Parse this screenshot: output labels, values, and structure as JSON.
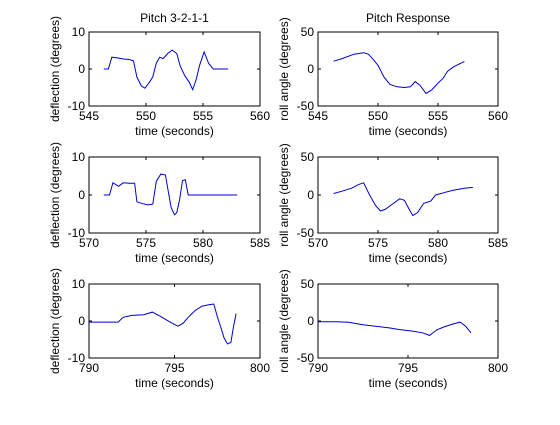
{
  "colors": {
    "line": "#0000cc",
    "axes": "#000000",
    "background": "#ffffff"
  },
  "chart_data": [
    {
      "type": "line",
      "title": "Pitch 3-2-1-1",
      "xlabel": "time (seconds)",
      "ylabel": "deflection (degrees)",
      "xlim": [
        545,
        560
      ],
      "ylim": [
        -10,
        10
      ],
      "xticks": [
        545,
        550,
        555,
        560
      ],
      "yticks": [
        -10,
        0,
        10
      ],
      "xtick_labels": [
        "545",
        "550",
        "555",
        "560"
      ],
      "ytick_labels": [
        "-10",
        "0",
        "10"
      ],
      "grid": false,
      "series": [
        {
          "values": [
            [
              546.3,
              0
            ],
            [
              546.7,
              0
            ],
            [
              547.0,
              3.2
            ],
            [
              547.5,
              3.0
            ],
            [
              548.0,
              2.7
            ],
            [
              548.5,
              2.6
            ],
            [
              548.9,
              2.2
            ],
            [
              549.2,
              -2.2
            ],
            [
              549.6,
              -4.6
            ],
            [
              549.9,
              -5.2
            ],
            [
              550.3,
              -3.6
            ],
            [
              550.6,
              -2.1
            ],
            [
              550.9,
              1.6
            ],
            [
              551.2,
              3.2
            ],
            [
              551.5,
              2.8
            ],
            [
              551.9,
              4.2
            ],
            [
              552.3,
              5.1
            ],
            [
              552.7,
              4.2
            ],
            [
              553.0,
              0.8
            ],
            [
              553.4,
              -1.8
            ],
            [
              553.8,
              -3.6
            ],
            [
              554.1,
              -5.6
            ],
            [
              554.4,
              -2.8
            ],
            [
              554.7,
              1.0
            ],
            [
              555.1,
              4.6
            ],
            [
              555.5,
              1.5
            ],
            [
              555.9,
              0
            ],
            [
              556.5,
              0
            ],
            [
              557.2,
              0
            ]
          ]
        }
      ]
    },
    {
      "type": "line",
      "title": "Pitch Response",
      "xlabel": "time (seconds)",
      "ylabel": "roll angle (degrees)",
      "xlim": [
        545,
        560
      ],
      "ylim": [
        -50,
        50
      ],
      "xticks": [
        545,
        550,
        555,
        560
      ],
      "yticks": [
        -50,
        0,
        50
      ],
      "xtick_labels": [
        "545",
        "550",
        "555",
        "560"
      ],
      "ytick_labels": [
        "-50",
        "0",
        "50"
      ],
      "grid": false,
      "series": [
        {
          "values": [
            [
              546.3,
              10.5
            ],
            [
              547.0,
              14
            ],
            [
              548.0,
              20
            ],
            [
              548.8,
              22
            ],
            [
              549.2,
              20
            ],
            [
              549.6,
              13
            ],
            [
              550.0,
              5
            ],
            [
              550.5,
              -11
            ],
            [
              551.0,
              -21
            ],
            [
              551.6,
              -24
            ],
            [
              552.2,
              -25
            ],
            [
              552.7,
              -24
            ],
            [
              553.1,
              -17
            ],
            [
              553.5,
              -22
            ],
            [
              554.0,
              -33
            ],
            [
              554.5,
              -28
            ],
            [
              555.0,
              -19
            ],
            [
              555.4,
              -13
            ],
            [
              555.8,
              -3
            ],
            [
              556.3,
              3
            ],
            [
              556.8,
              7
            ],
            [
              557.2,
              10
            ]
          ]
        }
      ]
    },
    {
      "type": "line",
      "title": "",
      "xlabel": "time (seconds)",
      "ylabel": "deflection (degrees)",
      "xlim": [
        570,
        585
      ],
      "ylim": [
        -10,
        10
      ],
      "xticks": [
        570,
        575,
        580,
        585
      ],
      "yticks": [
        -10,
        0,
        10
      ],
      "xtick_labels": [
        "570",
        "575",
        "580",
        "585"
      ],
      "ytick_labels": [
        "-10",
        "0",
        "10"
      ],
      "grid": false,
      "series": [
        {
          "values": [
            [
              571.3,
              0
            ],
            [
              571.8,
              0
            ],
            [
              572.1,
              3.2
            ],
            [
              572.6,
              2.3
            ],
            [
              573.0,
              3.2
            ],
            [
              573.5,
              3.1
            ],
            [
              574.0,
              3.1
            ],
            [
              574.2,
              -1.8
            ],
            [
              574.7,
              -2.3
            ],
            [
              575.2,
              -2.6
            ],
            [
              575.6,
              -2.4
            ],
            [
              575.9,
              3.6
            ],
            [
              576.3,
              5.5
            ],
            [
              576.7,
              5.3
            ],
            [
              576.9,
              1.8
            ],
            [
              577.2,
              -3.3
            ],
            [
              577.5,
              -5.2
            ],
            [
              577.7,
              -4.6
            ],
            [
              577.95,
              -1.2
            ],
            [
              578.2,
              3.8
            ],
            [
              578.45,
              4.0
            ],
            [
              578.7,
              0
            ],
            [
              579.5,
              0
            ],
            [
              581.0,
              0
            ],
            [
              583.0,
              0
            ]
          ]
        }
      ]
    },
    {
      "type": "line",
      "title": "",
      "xlabel": "time (seconds)",
      "ylabel": "roll angle (degrees)",
      "xlim": [
        570,
        585
      ],
      "ylim": [
        -50,
        50
      ],
      "xticks": [
        570,
        575,
        580,
        585
      ],
      "yticks": [
        -50,
        0,
        50
      ],
      "xtick_labels": [
        "570",
        "575",
        "580",
        "585"
      ],
      "ytick_labels": [
        "-50",
        "0",
        "50"
      ],
      "grid": false,
      "series": [
        {
          "values": [
            [
              571.3,
              2
            ],
            [
              572.0,
              5
            ],
            [
              572.8,
              9
            ],
            [
              573.4,
              14
            ],
            [
              573.8,
              16
            ],
            [
              574.3,
              0
            ],
            [
              574.8,
              -14
            ],
            [
              575.2,
              -21
            ],
            [
              575.6,
              -19
            ],
            [
              576.2,
              -12
            ],
            [
              576.8,
              -5
            ],
            [
              577.2,
              -7
            ],
            [
              577.6,
              -19
            ],
            [
              577.9,
              -27
            ],
            [
              578.3,
              -23
            ],
            [
              578.8,
              -11
            ],
            [
              579.4,
              -8
            ],
            [
              579.8,
              0
            ],
            [
              580.5,
              3
            ],
            [
              581.2,
              6
            ],
            [
              582.2,
              9
            ],
            [
              582.9,
              10
            ]
          ]
        }
      ]
    },
    {
      "type": "line",
      "title": "",
      "xlabel": "time (seconds)",
      "ylabel": "deflection (degrees)",
      "xlim": [
        790,
        800
      ],
      "ylim": [
        -10,
        10
      ],
      "xticks": [
        790,
        795,
        800
      ],
      "yticks": [
        -10,
        0,
        10
      ],
      "xtick_labels": [
        "790",
        "795",
        "800"
      ],
      "ytick_labels": [
        "-10",
        "0",
        "10"
      ],
      "grid": false,
      "series": [
        {
          "values": [
            [
              790.0,
              -0.3
            ],
            [
              791.0,
              -0.3
            ],
            [
              791.7,
              -0.3
            ],
            [
              792.0,
              1.0
            ],
            [
              792.5,
              1.5
            ],
            [
              793.2,
              1.7
            ],
            [
              793.7,
              2.4
            ],
            [
              794.2,
              1.2
            ],
            [
              794.7,
              -0.2
            ],
            [
              795.2,
              -1.4
            ],
            [
              795.5,
              -0.6
            ],
            [
              795.8,
              1.0
            ],
            [
              796.2,
              2.8
            ],
            [
              796.6,
              4.0
            ],
            [
              797.0,
              4.4
            ],
            [
              797.3,
              4.6
            ],
            [
              797.5,
              1.2
            ],
            [
              797.7,
              -1.6
            ],
            [
              797.9,
              -4.6
            ],
            [
              798.1,
              -6.2
            ],
            [
              798.3,
              -5.8
            ],
            [
              798.45,
              -1.5
            ],
            [
              798.6,
              2.0
            ]
          ]
        }
      ]
    },
    {
      "type": "line",
      "title": "",
      "xlabel": "time (seconds)",
      "ylabel": "roll angle (degrees)",
      "xlim": [
        790,
        800
      ],
      "ylim": [
        -50,
        50
      ],
      "xticks": [
        790,
        795,
        800
      ],
      "yticks": [
        -50,
        0,
        50
      ],
      "xtick_labels": [
        "790",
        "795",
        "800"
      ],
      "ytick_labels": [
        "-50",
        "0",
        "50"
      ],
      "grid": false,
      "series": [
        {
          "values": [
            [
              790.0,
              -1
            ],
            [
              791.0,
              -1
            ],
            [
              791.7,
              -1.8
            ],
            [
              792.5,
              -5
            ],
            [
              793.2,
              -7
            ],
            [
              794.0,
              -9.5
            ],
            [
              794.5,
              -11.5
            ],
            [
              795.2,
              -13.5
            ],
            [
              795.8,
              -16
            ],
            [
              796.2,
              -19.5
            ],
            [
              796.6,
              -12
            ],
            [
              797.0,
              -8
            ],
            [
              797.5,
              -4
            ],
            [
              797.9,
              -1.5
            ],
            [
              798.2,
              -7
            ],
            [
              798.5,
              -16
            ]
          ]
        }
      ]
    }
  ]
}
